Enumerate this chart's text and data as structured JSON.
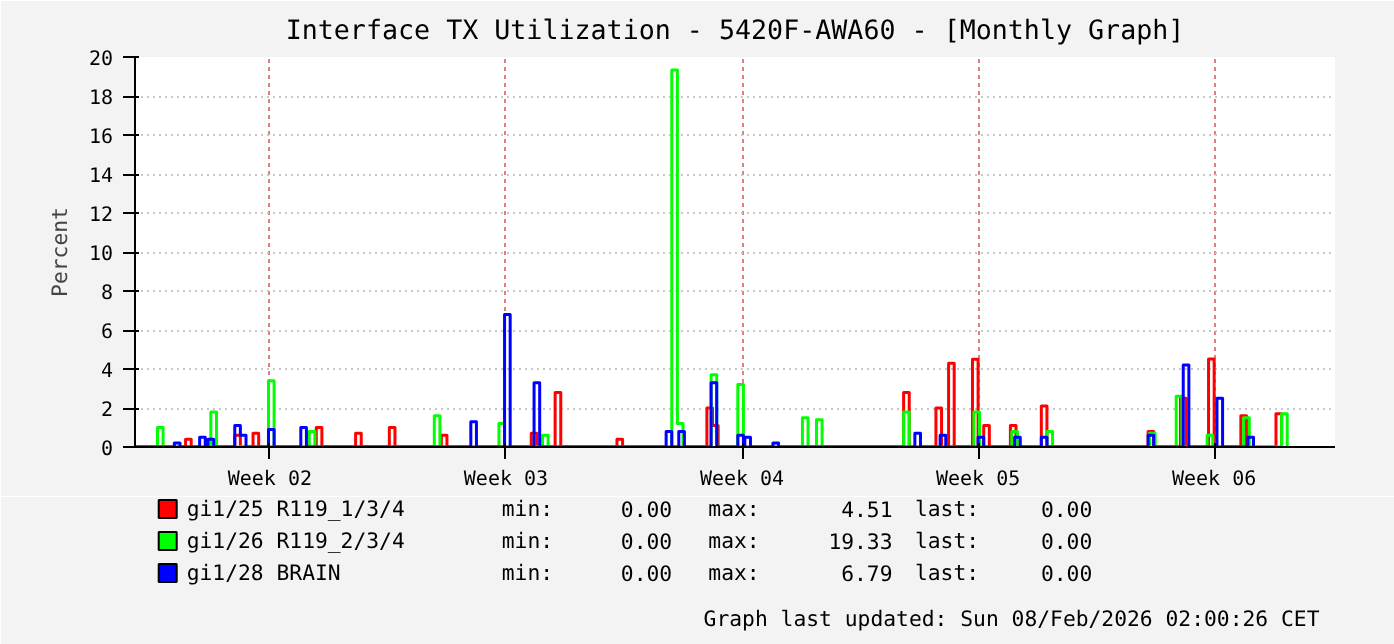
{
  "chart_data": {
    "type": "step",
    "title": "Interface TX Utilization - 5420F-AWA60 - [Monthly Graph]",
    "ylabel": "Percent",
    "xlim": [
      "2026-01-03T12:00",
      "2026-02-08T02:00"
    ],
    "xticks": [
      {
        "value": "2026-01-07T12:00",
        "label": "Week 02"
      },
      {
        "value": "2026-01-14T12:00",
        "label": "Week 03"
      },
      {
        "value": "2026-01-21T12:00",
        "label": "Week 04"
      },
      {
        "value": "2026-01-28T12:00",
        "label": "Week 05"
      },
      {
        "value": "2026-02-04T12:00",
        "label": "Week 06"
      }
    ],
    "ylim": [
      0,
      20
    ],
    "yticks": [
      0,
      2,
      4,
      6,
      8,
      10,
      12,
      14,
      16,
      18,
      20
    ],
    "grid": true,
    "legend": "bottom",
    "marker": "none",
    "line_style": "solid",
    "series": [
      {
        "name": "gi1/25 R119_1/3/4",
        "color": "#ff0000",
        "x": [
          "2026-01-03T12:00",
          "2026-01-05T00:00",
          "2026-01-05T04:00",
          "2026-01-06T11:00",
          "2026-01-06T15:00",
          "2026-01-07T00:00",
          "2026-01-07T04:00",
          "2026-01-08T21:00",
          "2026-01-09T01:00",
          "2026-01-10T01:00",
          "2026-01-10T05:00",
          "2026-01-11T01:00",
          "2026-01-11T05:00",
          "2026-01-12T14:00",
          "2026-01-12T18:00",
          "2026-01-15T06:00",
          "2026-01-15T10:00",
          "2026-01-15T23:00",
          "2026-01-16T03:00",
          "2026-01-17T19:00",
          "2026-01-17T23:00",
          "2026-01-20T11:00",
          "2026-01-20T15:00",
          "2026-01-20T19:00",
          "2026-01-26T07:00",
          "2026-01-26T11:00",
          "2026-01-27T06:00",
          "2026-01-27T10:00",
          "2026-01-27T15:00",
          "2026-01-27T19:00",
          "2026-01-28T08:00",
          "2026-01-28T12:00",
          "2026-01-28T16:00",
          "2026-01-28T20:00",
          "2026-01-29T11:00",
          "2026-01-29T15:00",
          "2026-01-30T09:00",
          "2026-01-30T13:00",
          "2026-02-02T13:00",
          "2026-02-02T17:00",
          "2026-02-03T12:00",
          "2026-02-03T16:00",
          "2026-02-04T08:00",
          "2026-02-04T12:00",
          "2026-02-05T07:00",
          "2026-02-05T11:00",
          "2026-02-06T08:00",
          "2026-02-06T12:00"
        ],
        "values": [
          0,
          0.4,
          0,
          0.6,
          0,
          0.7,
          0,
          1.0,
          0,
          0.7,
          0,
          1.0,
          0,
          0.6,
          0,
          0.7,
          0,
          2.8,
          0,
          0.4,
          0,
          2.0,
          1.1,
          0,
          2.8,
          0,
          2.0,
          0,
          4.3,
          0,
          4.5,
          0,
          1.1,
          0,
          1.1,
          0,
          2.1,
          0,
          0.8,
          0,
          2.5,
          0,
          4.51,
          0,
          1.6,
          0,
          1.7,
          0
        ]
      },
      {
        "name": "gi1/26 R119_2/3/4",
        "color": "#00ff00",
        "x": [
          "2026-01-03T12:00",
          "2026-01-04T04:00",
          "2026-01-04T08:00",
          "2026-01-05T18:00",
          "2026-01-05T22:00",
          "2026-01-07T11:00",
          "2026-01-07T15:00",
          "2026-01-08T16:00",
          "2026-01-08T20:00",
          "2026-01-12T09:00",
          "2026-01-12T13:00",
          "2026-01-14T07:00",
          "2026-01-14T11:00",
          "2026-01-15T14:00",
          "2026-01-15T18:00",
          "2026-01-19T10:00",
          "2026-01-19T14:00",
          "2026-01-19T18:00",
          "2026-01-20T14:00",
          "2026-01-20T18:00",
          "2026-01-21T09:00",
          "2026-01-21T13:00",
          "2026-01-23T07:00",
          "2026-01-23T11:00",
          "2026-01-23T17:00",
          "2026-01-23T21:00",
          "2026-01-26T07:00",
          "2026-01-26T11:00",
          "2026-01-28T09:00",
          "2026-01-28T13:00",
          "2026-01-29T12:00",
          "2026-01-29T16:00",
          "2026-01-30T13:00",
          "2026-01-30T17:00",
          "2026-02-02T14:00",
          "2026-02-02T18:00",
          "2026-02-03T09:00",
          "2026-02-03T13:00",
          "2026-02-04T07:00",
          "2026-02-04T11:00",
          "2026-02-05T09:00",
          "2026-02-05T13:00",
          "2026-02-06T12:00",
          "2026-02-06T16:00"
        ],
        "values": [
          0,
          1.0,
          0,
          1.8,
          0,
          3.4,
          0,
          0.8,
          0,
          1.6,
          0,
          1.2,
          0,
          0.6,
          0,
          19.33,
          1.2,
          0,
          3.7,
          0,
          3.2,
          0,
          1.5,
          0,
          1.4,
          0,
          1.8,
          0,
          1.8,
          0,
          0.8,
          0,
          0.8,
          0,
          0.7,
          0,
          2.6,
          0,
          0.6,
          0,
          1.5,
          0,
          1.7,
          0
        ]
      },
      {
        "name": "gi1/28 BRAIN",
        "color": "#0000ff",
        "x": [
          "2026-01-03T12:00",
          "2026-01-04T16:00",
          "2026-01-04T20:00",
          "2026-01-05T10:00",
          "2026-01-05T14:00",
          "2026-01-05T16:00",
          "2026-01-05T20:00",
          "2026-01-06T11:00",
          "2026-01-06T15:00",
          "2026-01-06T19:00",
          "2026-01-07T11:00",
          "2026-01-07T15:00",
          "2026-01-08T10:00",
          "2026-01-08T14:00",
          "2026-01-13T11:00",
          "2026-01-13T15:00",
          "2026-01-14T11:00",
          "2026-01-14T15:00",
          "2026-01-15T08:00",
          "2026-01-15T12:00",
          "2026-01-19T06:00",
          "2026-01-19T10:00",
          "2026-01-19T15:00",
          "2026-01-19T19:00",
          "2026-01-20T14:00",
          "2026-01-20T18:00",
          "2026-01-21T09:00",
          "2026-01-21T13:00",
          "2026-01-21T14:00",
          "2026-01-21T18:00",
          "2026-01-22T10:00",
          "2026-01-22T14:00",
          "2026-01-26T15:00",
          "2026-01-26T19:00",
          "2026-01-27T09:00",
          "2026-01-27T13:00",
          "2026-01-28T12:00",
          "2026-01-28T16:00",
          "2026-01-29T14:00",
          "2026-01-29T18:00",
          "2026-01-30T09:00",
          "2026-01-30T13:00",
          "2026-02-02T13:00",
          "2026-02-02T17:00",
          "2026-02-03T14:00",
          "2026-02-03T18:00",
          "2026-02-04T14:00",
          "2026-02-04T18:00",
          "2026-02-05T12:00",
          "2026-02-05T16:00"
        ],
        "values": [
          0,
          0.2,
          0,
          0.5,
          0,
          0.4,
          0,
          1.1,
          0.6,
          0,
          0.9,
          0,
          1.0,
          0,
          1.3,
          0,
          6.79,
          0,
          3.3,
          0,
          0.8,
          0,
          0.8,
          0,
          3.3,
          0,
          0.6,
          0,
          0.5,
          0,
          0.2,
          0,
          0.7,
          0,
          0.6,
          0,
          0.5,
          0,
          0.5,
          0,
          0.5,
          0,
          0.6,
          0,
          4.2,
          0,
          2.5,
          0,
          0.5,
          0
        ]
      }
    ],
    "annotations": [
      "min: 0.00 max: 4.51 last: 0.00",
      "min: 0.00 max: 19.33 last: 0.00",
      "min: 0.00 max: 6.79 last: 0.00",
      "Graph last updated: Sun 08/Feb/2026 02:00:26 CET"
    ]
  }
}
